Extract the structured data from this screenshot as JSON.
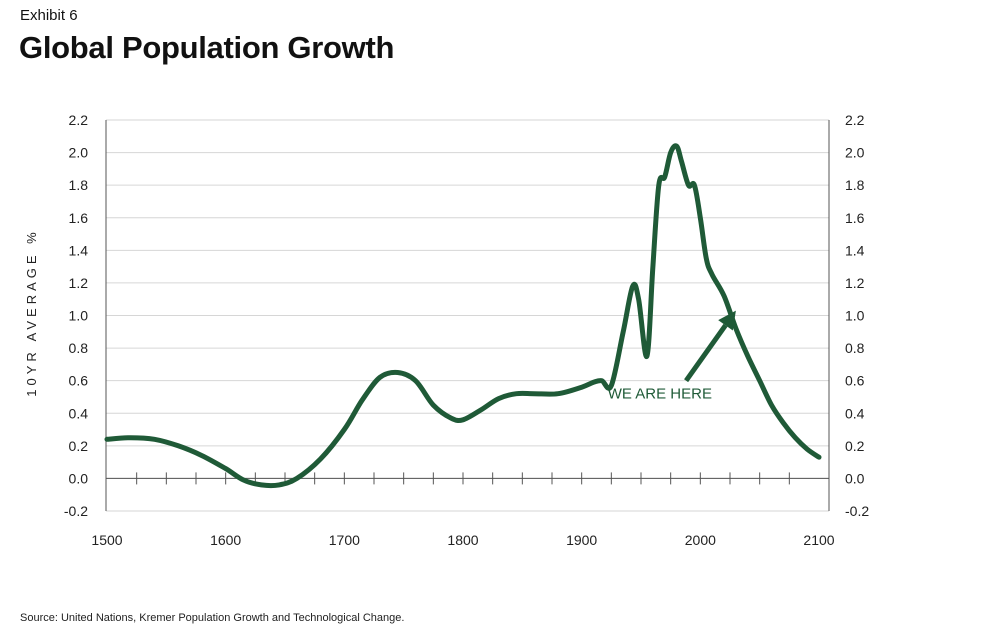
{
  "header": {
    "exhibit": "Exhibit 6",
    "title": "Global Population Growth"
  },
  "footer": {
    "source": "Source: United Nations, Kremer Population Growth and Technological Change."
  },
  "colors": {
    "line": "#1f5a37",
    "grid": "#d6d6d6",
    "axis": "#555555",
    "annotation": "#1f5a37"
  },
  "chart_data": {
    "type": "line",
    "title": "Global Population Growth",
    "xlabel": "",
    "ylabel": "10YR AVERAGE %",
    "xlim": [
      1500,
      2100
    ],
    "ylim": [
      -0.2,
      2.2
    ],
    "x_ticks": [
      1500,
      1600,
      1700,
      1800,
      1900,
      2000,
      2100
    ],
    "y_ticks": [
      -0.2,
      0.0,
      0.2,
      0.4,
      0.6,
      0.8,
      1.0,
      1.2,
      1.4,
      1.6,
      1.8,
      2.0,
      2.2
    ],
    "y_tick_labels": [
      "-0.2",
      "0.0",
      "0.2",
      "0.4",
      "0.6",
      "0.8",
      "1.0",
      "1.2",
      "1.4",
      "1.6",
      "1.8",
      "2.0",
      "2.2"
    ],
    "y_axis_both_sides": true,
    "grid": "horizontal",
    "series": [
      {
        "x": [
          1500,
          1520,
          1540,
          1560,
          1580,
          1600,
          1615,
          1630,
          1645,
          1660,
          1680,
          1700,
          1715,
          1730,
          1745,
          1760,
          1775,
          1790,
          1800,
          1815,
          1830,
          1845,
          1860,
          1880,
          1900,
          1910,
          1917,
          1925,
          1935,
          1943,
          1948,
          1955,
          1960,
          1965,
          1970,
          1975,
          1980,
          1984,
          1990,
          1995,
          2000,
          2005,
          2010,
          2020,
          2030,
          2040,
          2050,
          2060,
          2070,
          2080,
          2090,
          2100
        ],
        "y": [
          0.24,
          0.25,
          0.24,
          0.2,
          0.14,
          0.06,
          -0.01,
          -0.04,
          -0.04,
          0.0,
          0.12,
          0.3,
          0.48,
          0.62,
          0.65,
          0.6,
          0.45,
          0.37,
          0.36,
          0.42,
          0.49,
          0.52,
          0.52,
          0.52,
          0.56,
          0.59,
          0.6,
          0.57,
          0.9,
          1.18,
          1.1,
          0.75,
          1.3,
          1.8,
          1.85,
          2.0,
          2.04,
          1.95,
          1.8,
          1.8,
          1.6,
          1.35,
          1.25,
          1.12,
          0.92,
          0.75,
          0.6,
          0.45,
          0.34,
          0.25,
          0.18,
          0.13
        ]
      }
    ],
    "annotations": [
      {
        "text": "WE ARE HERE",
        "text_x": 1922,
        "text_y": 0.52,
        "arrow_from": [
          1988,
          0.6
        ],
        "arrow_to": [
          2030,
          1.03
        ]
      }
    ]
  }
}
